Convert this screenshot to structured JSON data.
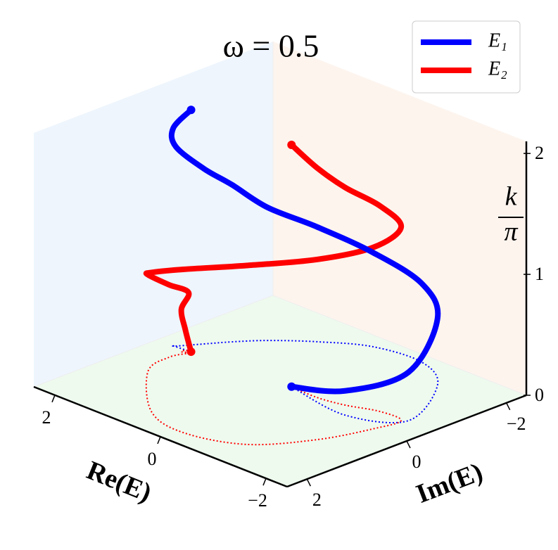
{
  "chart_data": {
    "type": "line3d",
    "title": "ω = 0.5",
    "xlabel": "Re(E)",
    "ylabel": "Im(E)",
    "zlabel": {
      "numerator": "k",
      "denominator": "π"
    },
    "xlim": [
      -2.4,
      2.4
    ],
    "ylim": [
      -2.4,
      2.4
    ],
    "zlim": [
      0,
      2.1
    ],
    "xticks": [
      {
        "value": -2,
        "label": "−2"
      },
      0,
      2
    ],
    "yticks": [
      {
        "value": -2,
        "label": "−2"
      },
      0,
      2
    ],
    "zticks": [
      0,
      1,
      2
    ],
    "floor_projection": true,
    "legend": "upper right",
    "series": [
      {
        "name": "E₁",
        "color": "#0000ff",
        "x": [
          0.0,
          -1.19,
          -1.92,
          -1.33,
          -0.62,
          0.22,
          0.86,
          1.35,
          1.65,
          1.86,
          2.07,
          2.1,
          1.79
        ],
        "y": [
          -0.23,
          -0.04,
          -0.54,
          -1.75,
          -2.19,
          -2.09,
          -1.65,
          -1.18,
          -0.78,
          -0.44,
          -0.1,
          -0.08,
          -0.11
        ],
        "z": [
          0,
          0.2,
          0.4,
          0.55,
          0.65,
          0.78,
          0.95,
          1.1,
          1.3,
          1.45,
          1.65,
          1.8,
          2.0
        ]
      },
      {
        "name": "E₂",
        "color": "#ff0000",
        "x": [
          1.79,
          1.88,
          1.88,
          1.78,
          1.86,
          1.71,
          0.7,
          -0.11,
          -0.99,
          -1.53,
          -1.79,
          -1.85,
          -1.43,
          -0.95,
          -0.5,
          0.0
        ],
        "y": [
          -0.11,
          -0.09,
          -0.01,
          -0.05,
          0.26,
          0.84,
          1.84,
          2.06,
          1.72,
          0.88,
          0.03,
          -0.47,
          -0.49,
          -0.3,
          -0.21,
          -0.23
        ],
        "z": [
          0,
          0.17,
          0.35,
          0.5,
          0.6,
          0.8,
          1.15,
          1.35,
          1.48,
          1.49,
          1.5,
          1.6,
          1.7,
          1.8,
          1.9,
          2.0
        ]
      }
    ]
  }
}
